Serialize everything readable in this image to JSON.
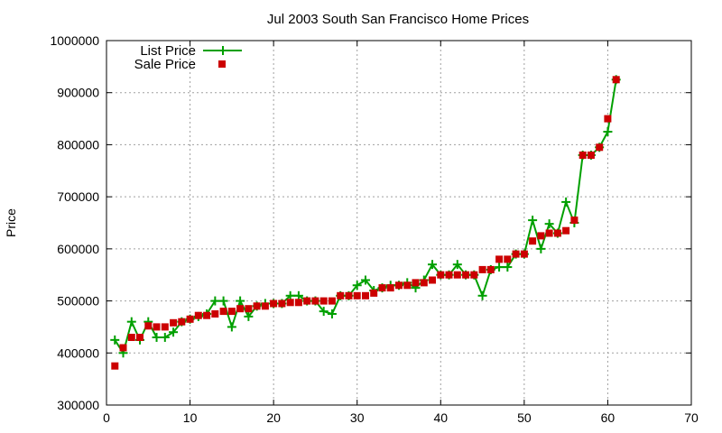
{
  "chart_data": {
    "type": "line",
    "title": "Jul 2003 South San Francisco Home Prices",
    "xlabel": "",
    "ylabel": "Price",
    "xlim": [
      0,
      70
    ],
    "ylim": [
      300000,
      1000000
    ],
    "x_ticks": [
      0,
      10,
      20,
      30,
      40,
      50,
      60,
      70
    ],
    "y_ticks": [
      300000,
      400000,
      500000,
      600000,
      700000,
      800000,
      900000,
      1000000
    ],
    "grid": true,
    "legend_position": "top-left",
    "series": [
      {
        "name": "List Price",
        "style": "line-with-plus-markers",
        "color": "#00a000",
        "x": [
          1,
          2,
          3,
          4,
          5,
          6,
          7,
          8,
          9,
          10,
          11,
          12,
          13,
          14,
          15,
          16,
          17,
          18,
          19,
          20,
          21,
          22,
          23,
          24,
          25,
          26,
          27,
          28,
          29,
          30,
          31,
          32,
          33,
          34,
          35,
          36,
          37,
          38,
          39,
          40,
          41,
          42,
          43,
          44,
          45,
          46,
          47,
          48,
          49,
          50,
          51,
          52,
          53,
          54,
          55,
          56,
          57,
          58,
          59,
          60,
          61
        ],
        "values": [
          425000,
          400000,
          460000,
          425000,
          460000,
          430000,
          430000,
          440000,
          460000,
          465000,
          470000,
          475000,
          500000,
          500000,
          450000,
          500000,
          470000,
          490000,
          495000,
          495000,
          495000,
          510000,
          510000,
          500000,
          500000,
          480000,
          475000,
          510000,
          510000,
          530000,
          540000,
          520000,
          525000,
          530000,
          530000,
          535000,
          525000,
          540000,
          570000,
          550000,
          550000,
          570000,
          550000,
          550000,
          510000,
          560000,
          565000,
          565000,
          590000,
          590000,
          655000,
          600000,
          648000,
          630000,
          690000,
          650000,
          780000,
          780000,
          795000,
          825000,
          925000
        ]
      },
      {
        "name": "Sale Price",
        "style": "square-markers",
        "color": "#cc0000",
        "x": [
          1,
          2,
          3,
          4,
          5,
          6,
          7,
          8,
          9,
          10,
          11,
          12,
          13,
          14,
          15,
          16,
          17,
          18,
          19,
          20,
          21,
          22,
          23,
          24,
          25,
          26,
          27,
          28,
          29,
          30,
          31,
          32,
          33,
          34,
          35,
          36,
          37,
          38,
          39,
          40,
          41,
          42,
          43,
          44,
          45,
          46,
          47,
          48,
          49,
          50,
          51,
          52,
          53,
          54,
          55,
          56,
          57,
          58,
          59,
          60,
          61
        ],
        "values": [
          375000,
          410000,
          430000,
          430000,
          452000,
          450000,
          450000,
          458000,
          460000,
          465000,
          472000,
          472000,
          475000,
          480000,
          480000,
          485000,
          485000,
          490000,
          490000,
          495000,
          495000,
          497000,
          497000,
          500000,
          500000,
          500000,
          500000,
          510000,
          510000,
          510000,
          510000,
          515000,
          525000,
          525000,
          530000,
          530000,
          535000,
          535000,
          540000,
          550000,
          550000,
          550000,
          550000,
          550000,
          560000,
          560000,
          580000,
          580000,
          590000,
          590000,
          615000,
          625000,
          630000,
          630000,
          635000,
          655000,
          780000,
          780000,
          795000,
          850000,
          925000
        ]
      }
    ]
  }
}
